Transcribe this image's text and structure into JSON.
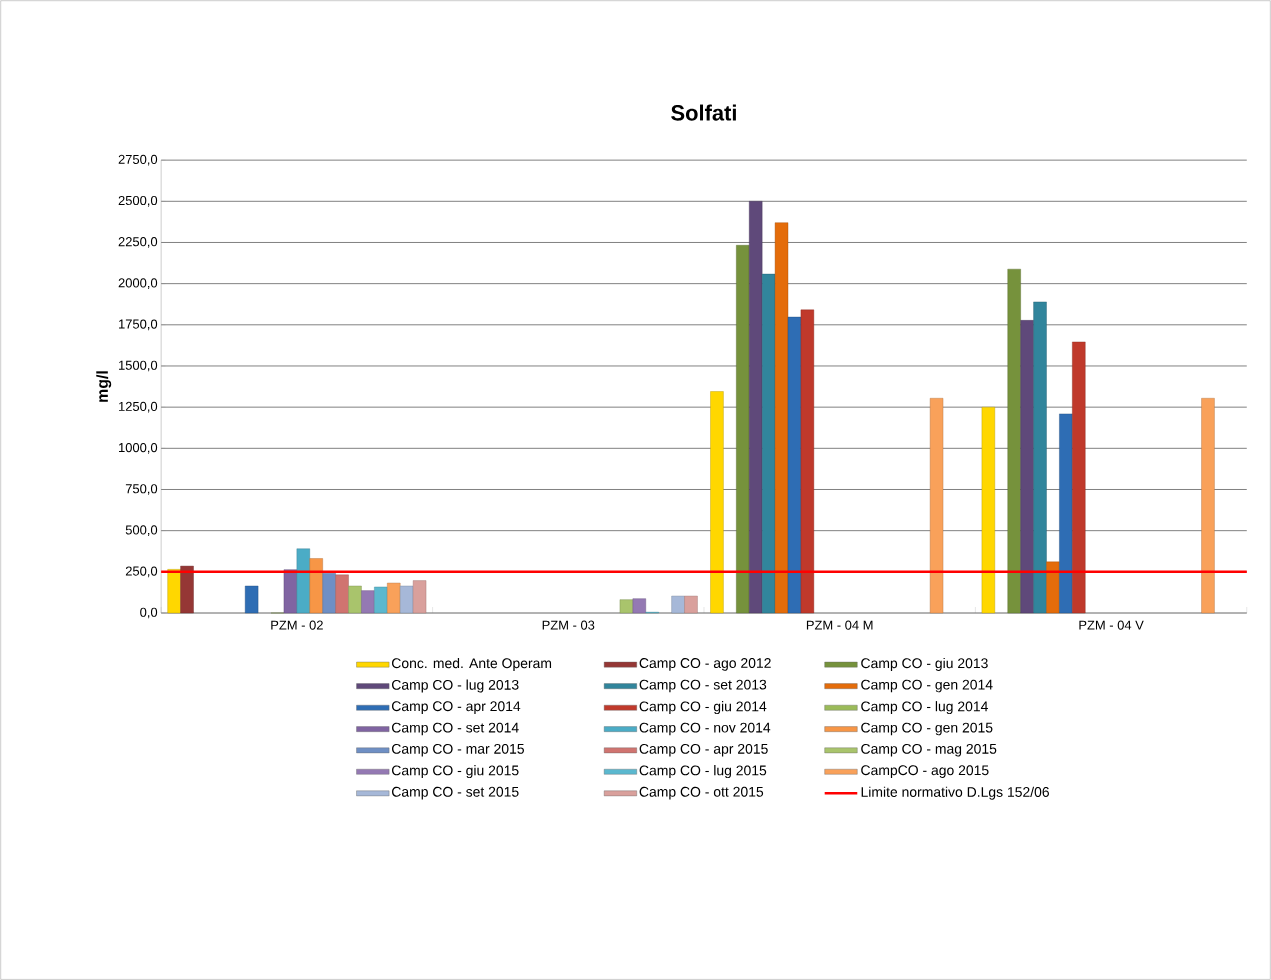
{
  "chart_data": {
    "type": "bar",
    "title": "Solfati",
    "ylabel": "mg/l",
    "categories": [
      "PZM - 02",
      "PZM - 03",
      "PZM - 04  M",
      "PZM - 04  V"
    ],
    "ylim": [
      0,
      2750
    ],
    "yticks": [
      {
        "value": 0,
        "label": "0,0"
      },
      {
        "value": 250,
        "label": "250,0"
      },
      {
        "value": 500,
        "label": "500,0"
      },
      {
        "value": 750,
        "label": "750,0"
      },
      {
        "value": 1000,
        "label": "1000,0"
      },
      {
        "value": 1250,
        "label": "1250,0"
      },
      {
        "value": 1500,
        "label": "1500,0"
      },
      {
        "value": 1750,
        "label": "1750,0"
      },
      {
        "value": 2000,
        "label": "2000,0"
      },
      {
        "value": 2250,
        "label": "2250,0"
      },
      {
        "value": 2500,
        "label": "2500,0"
      },
      {
        "value": 2750,
        "label": "2750,0"
      }
    ],
    "grid": "y",
    "legend": "bottom",
    "series": [
      {
        "name": "Conc. med. Ante Operam",
        "color": "#ffd700",
        "values": [
          265,
          null,
          1345,
          1250
        ]
      },
      {
        "name": "Camp CO - ago 2012",
        "color": "#953735",
        "values": [
          285,
          null,
          null,
          null
        ]
      },
      {
        "name": "Camp CO - giu 2013",
        "color": "#76923c",
        "values": [
          null,
          null,
          2233,
          2088
        ]
      },
      {
        "name": "Camp CO - lug 2013",
        "color": "#5f497a",
        "values": [
          null,
          null,
          2500,
          1777
        ]
      },
      {
        "name": "Camp CO - set 2013",
        "color": "#31859c",
        "values": [
          null,
          null,
          2058,
          1889
        ]
      },
      {
        "name": "Camp CO - gen 2014",
        "color": "#e46c0a",
        "values": [
          null,
          null,
          2370,
          311
        ]
      },
      {
        "name": "Camp CO - apr 2014",
        "color": "#2e6db4",
        "values": [
          164,
          null,
          1797,
          1209
        ]
      },
      {
        "name": "Camp CO - giu 2014",
        "color": "#c0392b",
        "values": [
          null,
          null,
          1841,
          1646
        ]
      },
      {
        "name": "Camp CO - lug 2014",
        "color": "#9bbb59",
        "values": [
          null,
          null,
          null,
          null
        ]
      },
      {
        "name": "Camp CO - set 2014",
        "color": "#8064a2",
        "values": [
          263,
          null,
          null,
          null
        ]
      },
      {
        "name": "Camp CO - nov 2014",
        "color": "#4bacc6",
        "values": [
          390,
          null,
          null,
          null
        ]
      },
      {
        "name": "Camp CO - gen 2015",
        "color": "#f79646",
        "values": [
          331,
          null,
          null,
          null
        ]
      },
      {
        "name": "Camp CO - mar 2015",
        "color": "#6f8fc4",
        "values": [
          241,
          null,
          null,
          null
        ]
      },
      {
        "name": "Camp CO - apr 2015",
        "color": "#d07470",
        "values": [
          232,
          null,
          null,
          null
        ]
      },
      {
        "name": "Camp CO - mag 2015",
        "color": "#a9c46c",
        "values": [
          164,
          81,
          null,
          null
        ]
      },
      {
        "name": "Camp CO - giu 2015",
        "color": "#9479b3",
        "values": [
          136,
          87,
          null,
          null
        ]
      },
      {
        "name": "Camp CO - lug 2015",
        "color": "#5bb8cf",
        "values": [
          158,
          5,
          null,
          null
        ]
      },
      {
        "name": "CampCO - ago 2015",
        "color": "#f9a15a",
        "values": [
          182,
          null,
          1304,
          1304
        ]
      },
      {
        "name": "Camp CO - set 2015",
        "color": "#a6b8d8",
        "values": [
          164,
          103,
          null,
          null
        ]
      },
      {
        "name": "Camp CO - ott 2015",
        "color": "#d9a09c",
        "values": [
          197,
          103,
          null,
          null
        ]
      }
    ],
    "ref_lines": [
      {
        "axis": "y",
        "value": 250,
        "label": "Limite normativo D.Lgs 152/06",
        "color": "#ff0000",
        "line_style": "solid"
      }
    ]
  }
}
